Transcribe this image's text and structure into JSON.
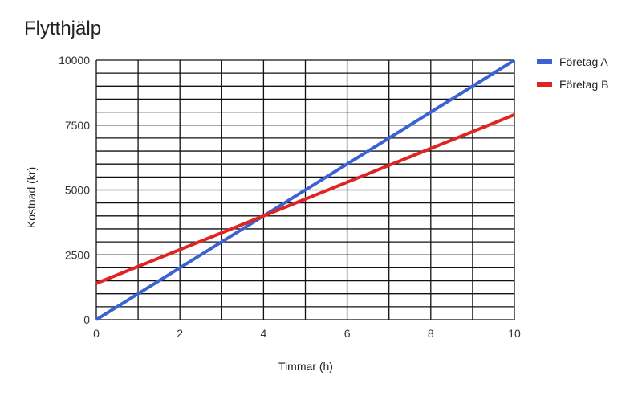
{
  "chart_data": {
    "type": "line",
    "title": "Flytthjälp",
    "xlabel": "Timmar (h)",
    "ylabel": "Kostnad (kr)",
    "xlim": [
      0,
      10
    ],
    "ylim": [
      0,
      10000
    ],
    "x_ticks": [
      0,
      2,
      4,
      6,
      8,
      10
    ],
    "x_tick_labels": [
      "0",
      "2",
      "4",
      "6",
      "8",
      "10"
    ],
    "y_ticks": [
      0,
      2500,
      5000,
      7500,
      10000
    ],
    "y_tick_labels": [
      "0",
      "2500",
      "5000",
      "7500",
      "10000"
    ],
    "x_grid_step": 1,
    "y_grid_step": 500,
    "grid": true,
    "legend_position": "right",
    "series": [
      {
        "name": "Företag A",
        "color": "#3b62d3",
        "x": [
          0,
          10
        ],
        "y": [
          0,
          10000
        ]
      },
      {
        "name": "Företag B",
        "color": "#e02424",
        "x": [
          0,
          10
        ],
        "y": [
          1400,
          7900
        ]
      }
    ]
  }
}
